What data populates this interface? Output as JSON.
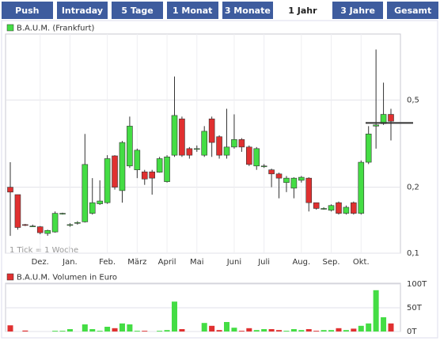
{
  "tabs": [
    "Push",
    "Intraday",
    "5 Tage",
    "1 Monat",
    "3 Monate",
    "1 Jahr",
    "3 Jahre",
    "Gesamt"
  ],
  "active_tab": 5,
  "chart_data": [
    {
      "type": "candlestick",
      "legend": "B.A.U.M. (Frankfurt)",
      "annotation": "1 Tick = 1 Woche",
      "log_scale": true,
      "grid": true,
      "up_color": "#44dd44",
      "down_color": "#e03030",
      "categories": [
        null,
        null,
        null,
        null,
        null,
        null,
        null,
        null,
        null,
        null,
        null,
        null,
        null,
        null,
        null,
        null,
        null,
        null,
        null,
        null,
        null,
        null,
        null,
        null,
        null,
        null,
        null,
        null,
        null,
        null,
        null,
        null,
        null,
        null,
        null,
        null,
        null,
        null,
        null,
        null,
        null,
        null,
        null,
        null,
        null,
        null,
        null,
        null,
        null,
        null,
        null,
        null
      ],
      "xticks": [
        {
          "value": 4,
          "label": "Dez."
        },
        {
          "value": 8,
          "label": "Jan."
        },
        {
          "value": 13,
          "label": "Feb."
        },
        {
          "value": 17,
          "label": "März"
        },
        {
          "value": 21,
          "label": "April"
        },
        {
          "value": 25,
          "label": "Mai"
        },
        {
          "value": 30,
          "label": "Juni"
        },
        {
          "value": 34,
          "label": "Juli"
        },
        {
          "value": 39,
          "label": "Aug."
        },
        {
          "value": 43,
          "label": "Sep."
        },
        {
          "value": 47,
          "label": "Okt."
        }
      ],
      "open": [
        0.2,
        0.185,
        0.135,
        0.133,
        0.132,
        0.123,
        0.125,
        0.152,
        0.135,
        0.137,
        0.139,
        0.152,
        0.168,
        0.17,
        0.278,
        0.193,
        0.25,
        0.24,
        0.235,
        0.235,
        0.234,
        0.212,
        0.28,
        0.41,
        0.3,
        0.298,
        0.28,
        0.41,
        0.34,
        0.28,
        0.305,
        0.33,
        0.305,
        0.25,
        0.25,
        0.24,
        0.23,
        0.21,
        0.198,
        0.215,
        0.22,
        0.17,
        0.16,
        0.157,
        0.17,
        0.152,
        0.17,
        0.152,
        0.26,
        0.38,
        0.39,
        0.43
      ],
      "high": [
        0.26,
        0.185,
        0.136,
        0.135,
        0.133,
        0.128,
        0.155,
        0.153,
        0.137,
        0.14,
        0.35,
        0.22,
        0.215,
        0.28,
        0.28,
        0.325,
        0.42,
        0.3,
        0.24,
        0.24,
        0.275,
        0.28,
        0.64,
        0.42,
        0.305,
        0.31,
        0.38,
        0.42,
        0.345,
        0.456,
        0.43,
        0.335,
        0.31,
        0.305,
        0.255,
        0.243,
        0.233,
        0.225,
        0.222,
        0.225,
        0.222,
        0.17,
        0.162,
        0.167,
        0.172,
        0.165,
        0.172,
        0.265,
        0.38,
        0.85,
        0.6,
        0.456
      ],
      "low": [
        0.12,
        0.128,
        0.133,
        0.132,
        0.122,
        0.12,
        0.124,
        0.15,
        0.132,
        0.135,
        0.138,
        0.15,
        0.166,
        0.168,
        0.195,
        0.17,
        0.245,
        0.22,
        0.205,
        0.185,
        0.233,
        0.21,
        0.275,
        0.275,
        0.27,
        0.29,
        0.275,
        0.275,
        0.27,
        0.27,
        0.3,
        0.29,
        0.25,
        0.24,
        0.245,
        0.2,
        0.178,
        0.19,
        0.178,
        0.21,
        0.155,
        0.158,
        0.158,
        0.155,
        0.15,
        0.15,
        0.15,
        0.15,
        0.255,
        0.3,
        0.385,
        0.327
      ],
      "close": [
        0.19,
        0.131,
        0.134,
        0.133,
        0.124,
        0.127,
        0.152,
        0.152,
        0.135,
        0.138,
        0.254,
        0.17,
        0.173,
        0.27,
        0.2,
        0.32,
        0.38,
        0.295,
        0.218,
        0.22,
        0.27,
        0.275,
        0.425,
        0.28,
        0.28,
        0.3,
        0.36,
        0.32,
        0.28,
        0.305,
        0.33,
        0.305,
        0.254,
        0.3,
        0.25,
        0.23,
        0.22,
        0.22,
        0.22,
        0.222,
        0.17,
        0.16,
        0.16,
        0.165,
        0.152,
        0.162,
        0.152,
        0.26,
        0.35,
        0.385,
        0.43,
        0.4
      ],
      "last_price": 0.393,
      "ylim": [
        0.1,
        1.0
      ],
      "yticks": [
        {
          "value": 0.1,
          "label": "0,1"
        },
        {
          "value": 0.2,
          "label": "0,2"
        },
        {
          "value": 0.5,
          "label": "0,5"
        }
      ]
    },
    {
      "type": "bar",
      "legend": "B.A.U.M. Volumen in Euro",
      "values": [
        13000,
        0,
        2000,
        0,
        0,
        0,
        1500,
        1500,
        5000,
        0,
        15000,
        5000,
        1500,
        10000,
        7000,
        17000,
        15000,
        1500,
        1500,
        0,
        1500,
        3000,
        63000,
        5000,
        0,
        0,
        18000,
        12000,
        3000,
        20000,
        8000,
        1500,
        7000,
        3000,
        5000,
        5000,
        3000,
        1500,
        5000,
        3000,
        5000,
        1500,
        3000,
        3000,
        7000,
        3000,
        6000,
        12000,
        17000,
        87000,
        30000,
        17000
      ],
      "ylim": [
        0,
        100000
      ],
      "yticks": [
        {
          "value": 0,
          "label": "0T"
        },
        {
          "value": 50000,
          "label": "50T"
        },
        {
          "value": 100000,
          "label": "100T"
        }
      ]
    }
  ]
}
